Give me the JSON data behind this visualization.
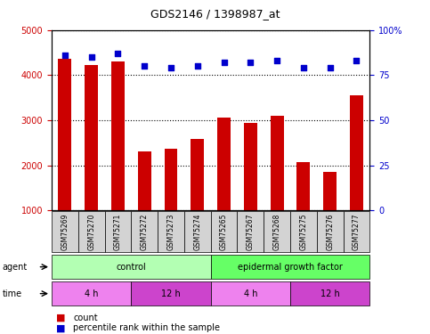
{
  "title": "GDS2146 / 1398987_at",
  "samples": [
    "GSM75269",
    "GSM75270",
    "GSM75271",
    "GSM75272",
    "GSM75273",
    "GSM75274",
    "GSM75265",
    "GSM75267",
    "GSM75268",
    "GSM75275",
    "GSM75276",
    "GSM75277"
  ],
  "counts": [
    4370,
    4230,
    4310,
    2300,
    2360,
    2580,
    3050,
    2950,
    3100,
    2080,
    1860,
    3560
  ],
  "percentiles": [
    86,
    85,
    87,
    80,
    79,
    80,
    82,
    82,
    83,
    79,
    79,
    83
  ],
  "bar_color": "#cc0000",
  "dot_color": "#0000cc",
  "ylim_left": [
    1000,
    5000
  ],
  "ylim_right": [
    0,
    100
  ],
  "yticks_left": [
    1000,
    2000,
    3000,
    4000,
    5000
  ],
  "yticks_right": [
    0,
    25,
    50,
    75,
    100
  ],
  "agent_groups": [
    {
      "label": "control",
      "start": 0,
      "end": 6,
      "color": "#b3ffb3"
    },
    {
      "label": "epidermal growth factor",
      "start": 6,
      "end": 12,
      "color": "#66ff66"
    }
  ],
  "time_groups": [
    {
      "label": "4 h",
      "start": 0,
      "end": 3,
      "color": "#ee82ee"
    },
    {
      "label": "12 h",
      "start": 3,
      "end": 6,
      "color": "#cc44cc"
    },
    {
      "label": "4 h",
      "start": 6,
      "end": 9,
      "color": "#ee82ee"
    },
    {
      "label": "12 h",
      "start": 9,
      "end": 12,
      "color": "#cc44cc"
    }
  ],
  "agent_label": "agent",
  "time_label": "time",
  "legend_count_label": "count",
  "legend_pct_label": "percentile rank within the sample",
  "background_color": "#ffffff",
  "plot_bg_color": "#ffffff",
  "tick_label_color_left": "#cc0000",
  "tick_label_color_right": "#0000cc",
  "sample_box_color": "#d3d3d3"
}
